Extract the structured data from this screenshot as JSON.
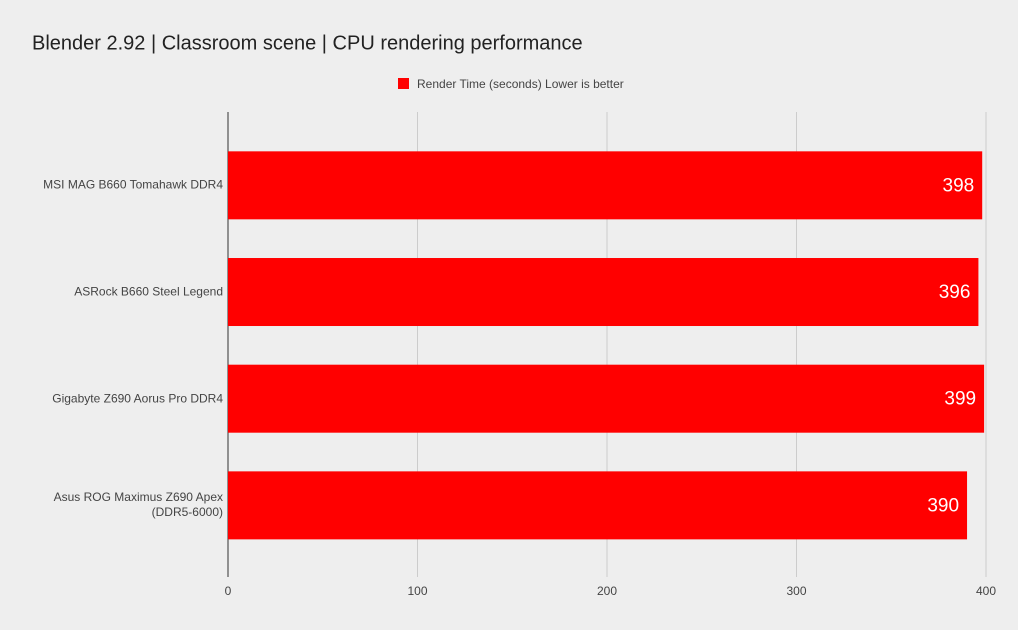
{
  "chart_data": {
    "type": "bar",
    "orientation": "horizontal",
    "title": "Blender 2.92 | Classroom scene | CPU rendering performance",
    "categories": [
      "MSI MAG B660 Tomahawk DDR4",
      "ASRock B660 Steel Legend",
      "Gigabyte Z690 Aorus Pro DDR4",
      "Asus ROG Maximus Z690 Apex (DDR5-6000)"
    ],
    "series": [
      {
        "name": "Render Time (seconds) Lower is better",
        "color": "#ff0000",
        "values": [
          398,
          396,
          399,
          390
        ]
      }
    ],
    "xlim": [
      0,
      400
    ],
    "xticks": [
      0,
      100,
      200,
      300,
      400
    ],
    "grid": true,
    "legend": "top"
  }
}
